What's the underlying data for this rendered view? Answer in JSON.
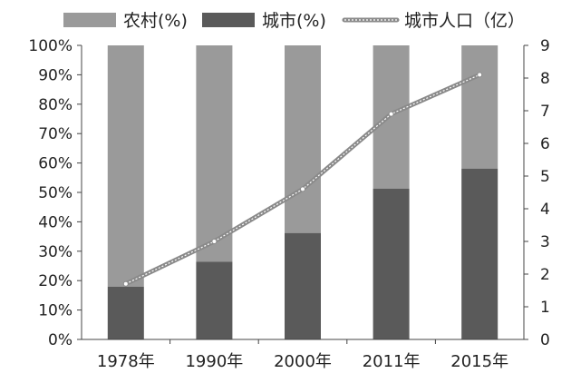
{
  "chart_data": {
    "type": "bar",
    "stacked": true,
    "categories": [
      "1978年",
      "1990年",
      "2000年",
      "2011年",
      "2015年"
    ],
    "series": [
      {
        "name": "农村(%)",
        "type": "bar",
        "axis": "left",
        "values": [
          82.1,
          73.6,
          63.8,
          48.7,
          41.9
        ]
      },
      {
        "name": "城市(%)",
        "type": "bar",
        "axis": "left",
        "values": [
          17.9,
          26.4,
          36.2,
          51.3,
          58.1
        ]
      },
      {
        "name": "城市人口（亿）",
        "type": "line",
        "axis": "right",
        "values": [
          1.7,
          3.0,
          4.6,
          6.9,
          8.1
        ]
      }
    ],
    "y_left": {
      "ticks": [
        "0%",
        "10%",
        "20%",
        "30%",
        "40%",
        "50%",
        "60%",
        "70%",
        "80%",
        "90%",
        "100%"
      ],
      "range": [
        0,
        100
      ]
    },
    "y_right": {
      "ticks": [
        "0",
        "1",
        "2",
        "3",
        "4",
        "5",
        "6",
        "7",
        "8",
        "9"
      ],
      "range": [
        0,
        9
      ]
    },
    "colors": {
      "rural": "#9a9a9a",
      "urban": "#5a5a5a",
      "line": "#8a8a8a",
      "line_marker": "#ffffff"
    },
    "legend_position": "top",
    "grid": false
  }
}
